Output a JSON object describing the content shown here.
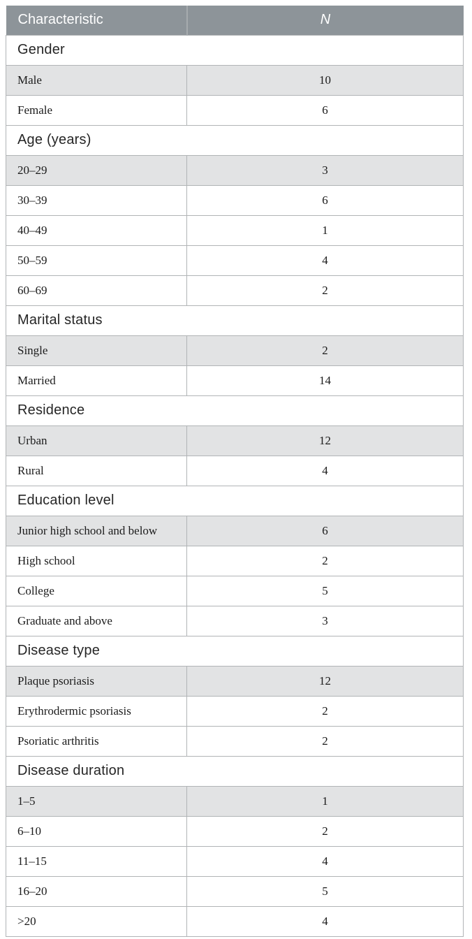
{
  "table": {
    "columns": [
      {
        "label": "Characteristic"
      },
      {
        "label": "N"
      }
    ],
    "sections": [
      {
        "title": "Gender",
        "rows": [
          {
            "label": "Male",
            "n": "10"
          },
          {
            "label": "Female",
            "n": "6"
          }
        ]
      },
      {
        "title": "Age (years)",
        "rows": [
          {
            "label": "20–29",
            "n": "3"
          },
          {
            "label": "30–39",
            "n": "6"
          },
          {
            "label": "40–49",
            "n": "1"
          },
          {
            "label": "50–59",
            "n": "4"
          },
          {
            "label": "60–69",
            "n": "2"
          }
        ]
      },
      {
        "title": "Marital status",
        "rows": [
          {
            "label": "Single",
            "n": "2"
          },
          {
            "label": "Married",
            "n": "14"
          }
        ]
      },
      {
        "title": "Residence",
        "rows": [
          {
            "label": "Urban",
            "n": "12"
          },
          {
            "label": "Rural",
            "n": "4"
          }
        ]
      },
      {
        "title": "Education level",
        "rows": [
          {
            "label": "Junior high school and below",
            "n": "6"
          },
          {
            "label": "High school",
            "n": "2"
          },
          {
            "label": "College",
            "n": "5"
          },
          {
            "label": "Graduate and above",
            "n": "3"
          }
        ]
      },
      {
        "title": "Disease type",
        "rows": [
          {
            "label": "Plaque psoriasis",
            "n": "12"
          },
          {
            "label": "Erythrodermic psoriasis",
            "n": "2"
          },
          {
            "label": "Psoriatic arthritis",
            "n": "2"
          }
        ]
      },
      {
        "title": "Disease duration",
        "rows": [
          {
            "label": "1–5",
            "n": "1"
          },
          {
            "label": "6–10",
            "n": "2"
          },
          {
            "label": "11–15",
            "n": "4"
          },
          {
            "label": "16–20",
            "n": "5"
          },
          {
            "label": ">20",
            "n": "4"
          }
        ]
      }
    ],
    "colors": {
      "header_bg": "#8d9499",
      "header_text": "#ffffff",
      "header_divider": "#a6abae",
      "shaded_row_bg": "#e2e3e4",
      "border": "#b1b4b6",
      "section_text": "#262626",
      "data_text": "#1b1b1b"
    }
  }
}
